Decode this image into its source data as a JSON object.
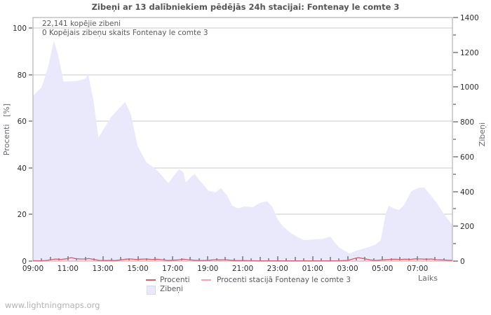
{
  "title": "Zibeņi ar 13 dalībniekiem pēdējās 24h stacijai: Fontenay le comte 3",
  "annotations": {
    "total": "22,141 kopējie zibeni",
    "station_total": "0 Kopējais zibeņu skaits Fontenay le comte 3"
  },
  "axes": {
    "left": {
      "label": "Procenti   [%]",
      "ticks": [
        0,
        20,
        40,
        60,
        80,
        100
      ],
      "range": [
        0,
        100
      ]
    },
    "right": {
      "label": "Zibeņi",
      "ticks": [
        0,
        200,
        400,
        600,
        800,
        1000,
        1200,
        1400
      ],
      "minor_step": 100,
      "range": [
        0,
        1400
      ]
    },
    "x": {
      "label": "Laiks",
      "tick_labels": [
        "09:00",
        "11:00",
        "13:00",
        "15:00",
        "17:00",
        "19:00",
        "21:00",
        "23:00",
        "01:00",
        "03:00",
        "05:00",
        "07:00"
      ],
      "hours_span": 24
    }
  },
  "legend": [
    {
      "label": "Procenti",
      "type": "line",
      "color": "#d0606c"
    },
    {
      "label": "Procenti stacijā Fontenay le comte 3",
      "type": "line",
      "color": "#f4a7af"
    },
    {
      "label": "Zibeņi",
      "type": "area",
      "color": "#e9e9fb"
    }
  ],
  "footer": "www.lightningmaps.org",
  "colors": {
    "grid": "#c9c9c9",
    "frame": "#a5a5a8",
    "tick": "#3a3a3a",
    "area_fill": "#e9e9fb",
    "procenti_line": "#d0606c",
    "station_line": "#f4a7af"
  },
  "chart_data": {
    "type": "area",
    "title": "Zibeņi ar 13 dalībniekiem pēdējās 24h stacijai: Fontenay le comte 3",
    "xlabel": "Laiks",
    "ylabel_left": "Procenti [%]",
    "ylabel_right": "Zibeņi",
    "x_start": "09:00",
    "x_range_hours": [
      0,
      24
    ],
    "left_ylim": [
      0,
      100
    ],
    "right_ylim": [
      0,
      1400
    ],
    "grid": "horizontal",
    "legend_position": "bottom",
    "series": [
      {
        "name": "Zibeņi",
        "type": "area",
        "axis": "right",
        "color": "#e9e9fb",
        "points": [
          [
            0,
            950
          ],
          [
            0.5,
            1000
          ],
          [
            0.85,
            1110
          ],
          [
            1.2,
            1266
          ],
          [
            1.45,
            1180
          ],
          [
            1.75,
            1032
          ],
          [
            2.5,
            1035
          ],
          [
            3.0,
            1048
          ],
          [
            3.15,
            1078
          ],
          [
            3.45,
            930
          ],
          [
            3.75,
            710
          ],
          [
            4.0,
            752
          ],
          [
            4.5,
            832
          ],
          [
            5.0,
            886
          ],
          [
            5.27,
            914
          ],
          [
            5.6,
            845
          ],
          [
            6.0,
            658
          ],
          [
            6.5,
            566
          ],
          [
            7.0,
            532
          ],
          [
            7.3,
            500
          ],
          [
            7.75,
            448
          ],
          [
            8.05,
            490
          ],
          [
            8.35,
            528
          ],
          [
            8.6,
            512
          ],
          [
            8.75,
            452
          ],
          [
            9.1,
            490
          ],
          [
            9.25,
            500
          ],
          [
            9.55,
            462
          ],
          [
            10.05,
            404
          ],
          [
            10.45,
            396
          ],
          [
            10.75,
            420
          ],
          [
            11.1,
            378
          ],
          [
            11.4,
            318
          ],
          [
            11.75,
            302
          ],
          [
            12.1,
            314
          ],
          [
            12.6,
            310
          ],
          [
            13.0,
            336
          ],
          [
            13.4,
            344
          ],
          [
            13.7,
            310
          ],
          [
            14.0,
            240
          ],
          [
            14.3,
            200
          ],
          [
            14.7,
            165
          ],
          [
            15.1,
            140
          ],
          [
            15.5,
            121
          ],
          [
            16.2,
            125
          ],
          [
            16.6,
            128
          ],
          [
            17.0,
            141
          ],
          [
            17.5,
            80
          ],
          [
            18.1,
            44
          ],
          [
            18.5,
            60
          ],
          [
            19.2,
            80
          ],
          [
            19.6,
            95
          ],
          [
            19.9,
            120
          ],
          [
            20.17,
            266
          ],
          [
            20.35,
            318
          ],
          [
            20.7,
            301
          ],
          [
            20.95,
            294
          ],
          [
            21.25,
            326
          ],
          [
            21.65,
            402
          ],
          [
            22.1,
            422
          ],
          [
            22.4,
            422
          ],
          [
            22.7,
            386
          ],
          [
            23.1,
            334
          ],
          [
            23.5,
            273
          ],
          [
            23.87,
            225
          ],
          [
            24,
            205
          ]
        ]
      },
      {
        "name": "Procenti",
        "type": "line",
        "axis": "left",
        "color": "#d0606c",
        "points": [
          [
            0,
            0.15
          ],
          [
            0.5,
            0.1
          ],
          [
            0.8,
            0.3
          ],
          [
            1.0,
            0.6
          ],
          [
            1.3,
            0.9
          ],
          [
            1.6,
            0.7
          ],
          [
            1.9,
            1.0
          ],
          [
            2.2,
            1.5
          ],
          [
            2.4,
            1.1
          ],
          [
            2.7,
            0.9
          ],
          [
            3.0,
            0.9
          ],
          [
            3.2,
            1.1
          ],
          [
            3.5,
            0.7
          ],
          [
            3.8,
            0.3
          ],
          [
            4.1,
            0.25
          ],
          [
            4.4,
            0.3
          ],
          [
            4.7,
            0.25
          ],
          [
            5.0,
            0.5
          ],
          [
            5.3,
            0.8
          ],
          [
            5.6,
            0.9
          ],
          [
            5.9,
            0.7
          ],
          [
            6.2,
            0.8
          ],
          [
            6.5,
            0.9
          ],
          [
            6.8,
            0.7
          ],
          [
            7.1,
            0.8
          ],
          [
            7.4,
            0.6
          ],
          [
            7.7,
            0.3
          ],
          [
            8.0,
            0.4
          ],
          [
            8.3,
            0.5
          ],
          [
            8.6,
            0.8
          ],
          [
            8.9,
            0.6
          ],
          [
            9.2,
            0.4
          ],
          [
            9.5,
            0.3
          ],
          [
            9.8,
            0.3
          ],
          [
            10.1,
            0.4
          ],
          [
            10.4,
            0.6
          ],
          [
            10.7,
            0.5
          ],
          [
            11.0,
            0.6
          ],
          [
            11.3,
            0.4
          ],
          [
            11.6,
            0.2
          ],
          [
            12.0,
            0.2
          ],
          [
            12.5,
            0.15
          ],
          [
            13.0,
            0.1
          ],
          [
            14.0,
            0.1
          ],
          [
            15.0,
            0.1
          ],
          [
            16.0,
            0.1
          ],
          [
            17.0,
            0.1
          ],
          [
            17.6,
            0.15
          ],
          [
            18.0,
            0.3
          ],
          [
            18.3,
            0.9
          ],
          [
            18.6,
            1.5
          ],
          [
            18.9,
            1.1
          ],
          [
            19.3,
            0.5
          ],
          [
            19.6,
            0.3
          ],
          [
            20.0,
            0.5
          ],
          [
            20.4,
            0.7
          ],
          [
            20.7,
            0.8
          ],
          [
            21.0,
            0.7
          ],
          [
            21.3,
            0.8
          ],
          [
            21.6,
            0.7
          ],
          [
            21.9,
            1.0
          ],
          [
            22.2,
            0.9
          ],
          [
            22.5,
            0.8
          ],
          [
            22.8,
            0.9
          ],
          [
            23.1,
            0.6
          ],
          [
            23.4,
            0.5
          ],
          [
            23.7,
            0.4
          ],
          [
            24,
            0.3
          ]
        ]
      },
      {
        "name": "Procenti stacijā Fontenay le comte 3",
        "type": "line",
        "axis": "left",
        "color": "#f4a7af",
        "points": [
          [
            0,
            0
          ],
          [
            24,
            0
          ]
        ]
      }
    ]
  }
}
